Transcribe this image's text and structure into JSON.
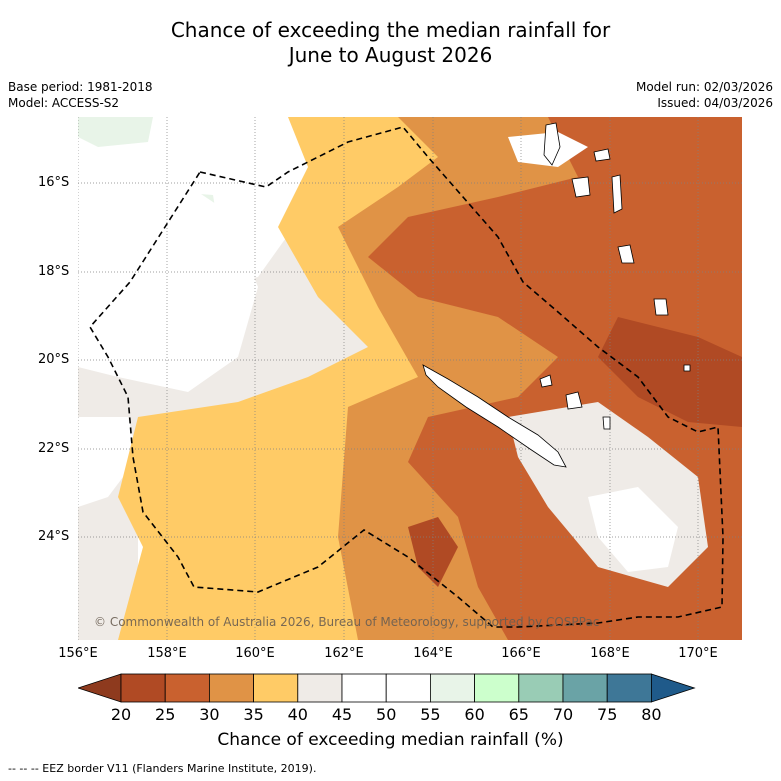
{
  "title_line1": "Chance of exceeding the median rainfall for",
  "title_line2": "June to August 2026",
  "base_period": "Base period: 1981-2018",
  "model": "Model: ACCESS-S2",
  "model_run": "Model run: 02/03/2026",
  "issued": "Issued: 04/03/2026",
  "copyright": "© Commonwealth of Australia 2026, Bureau of Meteorology, supported by COSPPac",
  "legend_text": "--  --  -- EEZ border V11 (Flanders Marine Institute, 2019).",
  "colorbar_title": "Chance of exceeding median rainfall (%)",
  "lat_labels": [
    "16°S",
    "18°S",
    "20°S",
    "22°S",
    "24°S"
  ],
  "lon_labels": [
    "156°E",
    "158°E",
    "160°E",
    "162°E",
    "164°E",
    "166°E",
    "168°E",
    "170°E"
  ],
  "colorbar": {
    "ticks": [
      "20",
      "25",
      "30",
      "35",
      "40",
      "45",
      "50",
      "55",
      "60",
      "65",
      "70",
      "75",
      "80"
    ],
    "colors": [
      "#8e3a1e",
      "#b04a24",
      "#c9612f",
      "#e09346",
      "#ffcb66",
      "#efebe7",
      "#ffffff",
      "#ffffff",
      "#e8f4e8",
      "#ccffcc",
      "#99ccb5",
      "#6aa3a6",
      "#3e7797",
      "#1f5a8a"
    ]
  }
}
